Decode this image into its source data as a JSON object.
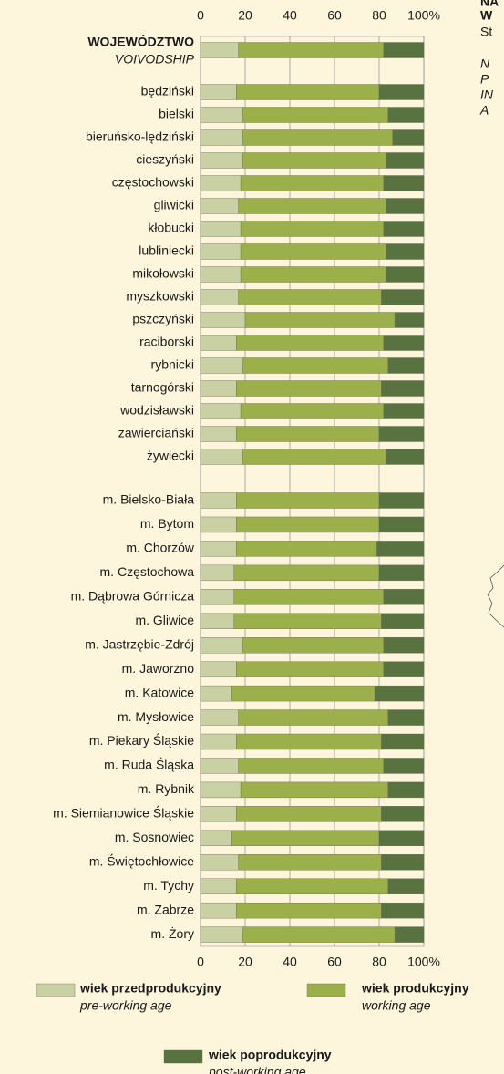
{
  "chart_data": {
    "type": "stacked_barh",
    "first_category_subtitle": "VOIVODSHIP",
    "categories": [
      "WOJEWÓDZTWO",
      "będziński",
      "bielski",
      "bieruńsko-lędziński",
      "cieszyński",
      "częstochowski",
      "gliwicki",
      "kłobucki",
      "lubliniecki",
      "mikołowski",
      "myszkowski",
      "pszczyński",
      "raciborski",
      "rybnicki",
      "tarnogórski",
      "wodzisławski",
      "zawierciański",
      "żywiecki",
      "m. Bielsko-Biała",
      "m. Bytom",
      "m. Chorzów",
      "m. Częstochowa",
      "m. Dąbrowa Górnicza",
      "m. Gliwice",
      "m. Jastrzębie-Zdrój",
      "m. Jaworzno",
      "m. Katowice",
      "m. Mysłowice",
      "m. Piekary Śląskie",
      "m. Ruda Śląska",
      "m. Rybnik",
      "m. Siemianowice Śląskie",
      "m. Sosnowiec",
      "m. Świętochłowice",
      "m. Tychy",
      "m. Zabrze",
      "m. Żory"
    ],
    "series": [
      {
        "name": "wiek przedprodukcyjny",
        "name_en": "pre-working age",
        "color": "#c9d0a4",
        "values": [
          17,
          16,
          19,
          19,
          19,
          18,
          17,
          18,
          18,
          18,
          17,
          20,
          16,
          19,
          16,
          18,
          16,
          19,
          16,
          16,
          16,
          15,
          15,
          15,
          19,
          16,
          14,
          17,
          16,
          17,
          18,
          16,
          14,
          17,
          16,
          16,
          19
        ]
      },
      {
        "name": "wiek produkcyjny",
        "name_en": "working age",
        "color": "#9bb04b",
        "values": [
          65,
          64,
          65,
          67,
          64,
          64,
          66,
          64,
          65,
          65,
          64,
          67,
          66,
          65,
          65,
          64,
          64,
          64,
          64,
          64,
          63,
          65,
          67,
          66,
          63,
          66,
          64,
          67,
          65,
          65,
          66,
          65,
          66,
          64,
          68,
          65,
          68
        ]
      },
      {
        "name": "wiek poprodukcyjny",
        "name_en": "post-working age",
        "color": "#587240",
        "values": [
          18,
          20,
          16,
          14,
          17,
          18,
          17,
          18,
          17,
          17,
          19,
          13,
          18,
          16,
          19,
          18,
          20,
          17,
          20,
          20,
          21,
          20,
          18,
          19,
          18,
          18,
          22,
          16,
          19,
          18,
          16,
          19,
          20,
          19,
          16,
          19,
          13
        ]
      }
    ],
    "xlim": [
      0,
      100
    ],
    "xticks": [
      0,
      20,
      40,
      60,
      80,
      {
        "value": 100,
        "label": "100%"
      }
    ],
    "grid": true,
    "side_text": [
      "NA",
      "W",
      "St",
      "N",
      "P",
      "IN",
      "A"
    ]
  }
}
